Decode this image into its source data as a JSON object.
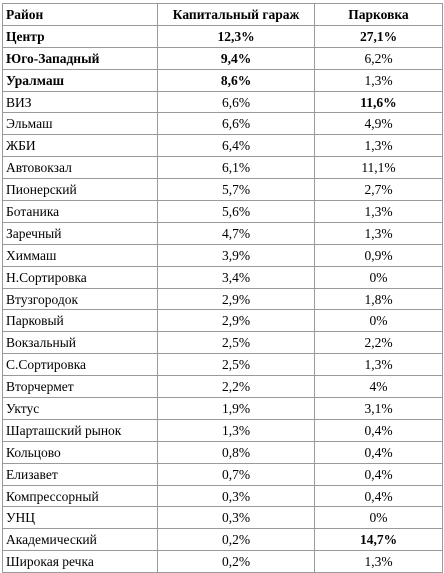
{
  "table": {
    "headers": [
      "Район",
      "Капитальный гараж",
      "Парковка"
    ],
    "rows": [
      {
        "district": "Центр",
        "garage": "12,3%",
        "parking": "27,1%",
        "bold_name": true,
        "bold_garage": true,
        "bold_parking": true
      },
      {
        "district": "Юго-Западный",
        "garage": "9,4%",
        "parking": "6,2%",
        "bold_name": true,
        "bold_garage": true,
        "bold_parking": false
      },
      {
        "district": "Уралмаш",
        "garage": "8,6%",
        "parking": "1,3%",
        "bold_name": true,
        "bold_garage": true,
        "bold_parking": false
      },
      {
        "district": "ВИЗ",
        "garage": "6,6%",
        "parking": "11,6%",
        "bold_name": false,
        "bold_garage": false,
        "bold_parking": true
      },
      {
        "district": "Эльмаш",
        "garage": "6,6%",
        "parking": "4,9%",
        "bold_name": false,
        "bold_garage": false,
        "bold_parking": false
      },
      {
        "district": "ЖБИ",
        "garage": "6,4%",
        "parking": "1,3%",
        "bold_name": false,
        "bold_garage": false,
        "bold_parking": false
      },
      {
        "district": "Автовокзал",
        "garage": "6,1%",
        "parking": "11,1%",
        "bold_name": false,
        "bold_garage": false,
        "bold_parking": false
      },
      {
        "district": "Пионерский",
        "garage": "5,7%",
        "parking": "2,7%",
        "bold_name": false,
        "bold_garage": false,
        "bold_parking": false
      },
      {
        "district": "Ботаника",
        "garage": "5,6%",
        "parking": "1,3%",
        "bold_name": false,
        "bold_garage": false,
        "bold_parking": false
      },
      {
        "district": "Заречный",
        "garage": "4,7%",
        "parking": "1,3%",
        "bold_name": false,
        "bold_garage": false,
        "bold_parking": false
      },
      {
        "district": "Химмаш",
        "garage": "3,9%",
        "parking": "0,9%",
        "bold_name": false,
        "bold_garage": false,
        "bold_parking": false
      },
      {
        "district": "Н.Сортировка",
        "garage": "3,4%",
        "parking": "0%",
        "bold_name": false,
        "bold_garage": false,
        "bold_parking": false
      },
      {
        "district": "Втузгородок",
        "garage": "2,9%",
        "parking": "1,8%",
        "bold_name": false,
        "bold_garage": false,
        "bold_parking": false
      },
      {
        "district": "Парковый",
        "garage": "2,9%",
        "parking": "0%",
        "bold_name": false,
        "bold_garage": false,
        "bold_parking": false
      },
      {
        "district": "Вокзальный",
        "garage": "2,5%",
        "parking": "2,2%",
        "bold_name": false,
        "bold_garage": false,
        "bold_parking": false
      },
      {
        "district": "С.Сортировка",
        "garage": "2,5%",
        "parking": "1,3%",
        "bold_name": false,
        "bold_garage": false,
        "bold_parking": false
      },
      {
        "district": "Вторчермет",
        "garage": "2,2%",
        "parking": "4%",
        "bold_name": false,
        "bold_garage": false,
        "bold_parking": false
      },
      {
        "district": "Уктус",
        "garage": "1,9%",
        "parking": "3,1%",
        "bold_name": false,
        "bold_garage": false,
        "bold_parking": false
      },
      {
        "district": "Шарташский рынок",
        "garage": "1,3%",
        "parking": "0,4%",
        "bold_name": false,
        "bold_garage": false,
        "bold_parking": false
      },
      {
        "district": "Кольцово",
        "garage": "0,8%",
        "parking": "0,4%",
        "bold_name": false,
        "bold_garage": false,
        "bold_parking": false
      },
      {
        "district": "Елизавет",
        "garage": "0,7%",
        "parking": "0,4%",
        "bold_name": false,
        "bold_garage": false,
        "bold_parking": false
      },
      {
        "district": "Компрессорный",
        "garage": "0,3%",
        "parking": "0,4%",
        "bold_name": false,
        "bold_garage": false,
        "bold_parking": false
      },
      {
        "district": "УНЦ",
        "garage": "0,3%",
        "parking": "0%",
        "bold_name": false,
        "bold_garage": false,
        "bold_parking": false
      },
      {
        "district": "Академический",
        "garage": "0,2%",
        "parking": "14,7%",
        "bold_name": false,
        "bold_garage": false,
        "bold_parking": true
      },
      {
        "district": "Широкая речка",
        "garage": "0,2%",
        "parking": "1,3%",
        "bold_name": false,
        "bold_garage": false,
        "bold_parking": false
      }
    ]
  }
}
